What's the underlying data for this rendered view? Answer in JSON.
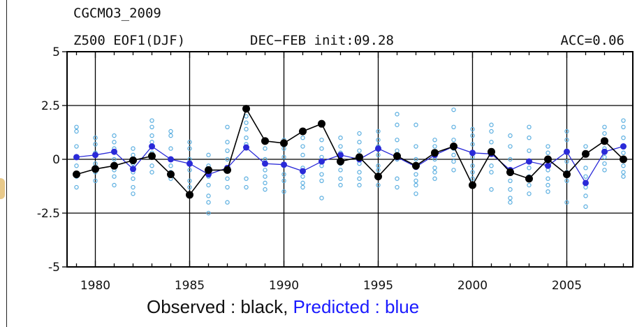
{
  "header": {
    "model": "CGCMO3_2009",
    "field": "Z500 EOF1(DJF)",
    "season": "DEC−FEB init:09.28",
    "acc": "ACC=0.06"
  },
  "caption": {
    "observed": "Observed : black,",
    "predicted": "Predicted : blue"
  },
  "colors": {
    "observed": "#000000",
    "predicted": "#2a2ad8",
    "members": "#5aaee0",
    "grid": "#000000"
  },
  "chart_data": {
    "type": "line",
    "xlim": [
      1978.5,
      2008.5
    ],
    "ylim": [
      -5,
      5
    ],
    "xticks": [
      1980,
      1985,
      1990,
      1995,
      2000,
      2005
    ],
    "yticks": [
      5,
      2.5,
      0,
      -2.5,
      -5
    ],
    "ytick_labels": [
      "5",
      "2.5",
      "0",
      "-2.5",
      "-5"
    ],
    "grid": true,
    "x": [
      1979,
      1980,
      1981,
      1982,
      1983,
      1984,
      1985,
      1986,
      1987,
      1988,
      1989,
      1990,
      1991,
      1992,
      1993,
      1994,
      1995,
      1996,
      1997,
      1998,
      1999,
      2000,
      2001,
      2002,
      2003,
      2004,
      2005,
      2006,
      2007,
      2008
    ],
    "series": [
      {
        "name": "Observed",
        "values": [
          -0.7,
          -0.45,
          -0.3,
          -0.05,
          0.15,
          -0.7,
          -1.65,
          -0.5,
          -0.5,
          2.35,
          0.85,
          0.75,
          1.3,
          1.65,
          -0.1,
          0.1,
          -0.8,
          0.15,
          -0.3,
          0.3,
          0.6,
          -1.2,
          0.35,
          -0.6,
          -0.9,
          0.0,
          -0.7,
          0.25,
          0.85,
          0.0
        ]
      },
      {
        "name": "Predicted",
        "values": [
          0.1,
          0.2,
          0.35,
          -0.45,
          0.6,
          0.0,
          -0.2,
          -0.7,
          -0.4,
          0.55,
          -0.2,
          -0.25,
          -0.55,
          -0.1,
          0.2,
          0.0,
          0.5,
          0.1,
          -0.35,
          0.2,
          0.6,
          0.3,
          0.25,
          -0.5,
          -0.1,
          -0.3,
          0.35,
          -1.1,
          0.35,
          0.6
        ]
      }
    ],
    "members": [
      [
        1.5,
        1.3,
        0.6,
        0.1,
        -0.3,
        -0.8,
        -1.3
      ],
      [
        1.0,
        0.7,
        0.3,
        -0.2,
        -0.6,
        -1.0,
        -0.5
      ],
      [
        1.1,
        0.8,
        0.5,
        0.0,
        -0.5,
        -0.8,
        -1.2
      ],
      [
        0.5,
        0.2,
        -0.2,
        -0.6,
        -0.9,
        -1.3,
        -1.6
      ],
      [
        1.8,
        1.5,
        1.1,
        0.8,
        0.3,
        -0.3,
        -0.6
      ],
      [
        1.3,
        1.1,
        0.5,
        -0.3,
        -0.6,
        0.0,
        -0.9
      ],
      [
        0.8,
        0.5,
        0.0,
        -0.5,
        -1.0,
        -1.3,
        -1.7
      ],
      [
        0.2,
        -0.3,
        -0.8,
        -1.2,
        -1.7,
        -2.0,
        -2.5
      ],
      [
        1.5,
        0.8,
        0.4,
        0.0,
        -0.9,
        -1.3,
        -2.0
      ],
      [
        2.0,
        1.7,
        1.4,
        1.0,
        0.7,
        -0.9,
        -1.3
      ],
      [
        0.9,
        0.5,
        0.0,
        -0.5,
        -0.8,
        -1.1,
        -1.4
      ],
      [
        0.9,
        0.5,
        0.1,
        -0.3,
        -0.7,
        -1.0,
        -1.5
      ],
      [
        1.0,
        0.6,
        0.2,
        -0.4,
        -0.8,
        -1.1,
        -1.3
      ],
      [
        0.9,
        0.5,
        0.1,
        -0.3,
        -0.7,
        -1.0,
        -1.8
      ],
      [
        1.0,
        0.6,
        0.3,
        -0.2,
        -0.5,
        -0.9,
        -1.2
      ],
      [
        1.2,
        0.8,
        0.4,
        -0.2,
        -0.6,
        -0.9,
        -1.2
      ],
      [
        1.3,
        0.9,
        0.6,
        0.2,
        -0.3,
        -0.5,
        -1.2
      ],
      [
        2.1,
        1.6,
        0.9,
        0.4,
        0.0,
        -0.9,
        -1.3
      ],
      [
        1.6,
        0.6,
        0.0,
        -0.7,
        -1.0,
        -1.2,
        -1.6
      ],
      [
        0.9,
        0.6,
        0.3,
        0.0,
        -0.4,
        -0.6,
        -0.9
      ],
      [
        2.3,
        1.5,
        0.9,
        0.5,
        0.2,
        -0.1,
        -0.5
      ],
      [
        1.4,
        1.1,
        0.7,
        0.1,
        -0.3,
        -0.6,
        -0.9
      ],
      [
        1.6,
        1.3,
        0.8,
        0.4,
        -0.3,
        -0.6,
        -1.4
      ],
      [
        1.1,
        0.6,
        0.0,
        -1.0,
        -1.4,
        -1.8,
        -2.0
      ],
      [
        1.5,
        1.0,
        0.4,
        -0.4,
        -0.8,
        -1.2,
        -1.6
      ],
      [
        0.6,
        0.3,
        0.0,
        -0.5,
        -0.9,
        -1.2,
        -1.5
      ],
      [
        1.3,
        0.9,
        0.4,
        -0.1,
        -0.6,
        -1.0,
        -2.0
      ],
      [
        0.6,
        0.3,
        -0.4,
        -0.8,
        -1.3,
        -1.7,
        -2.2
      ],
      [
        1.5,
        1.2,
        0.8,
        0.5,
        0.1,
        -0.2,
        -0.5
      ],
      [
        1.8,
        1.5,
        1.0,
        0.3,
        -0.3,
        -0.6,
        -0.8
      ]
    ]
  }
}
